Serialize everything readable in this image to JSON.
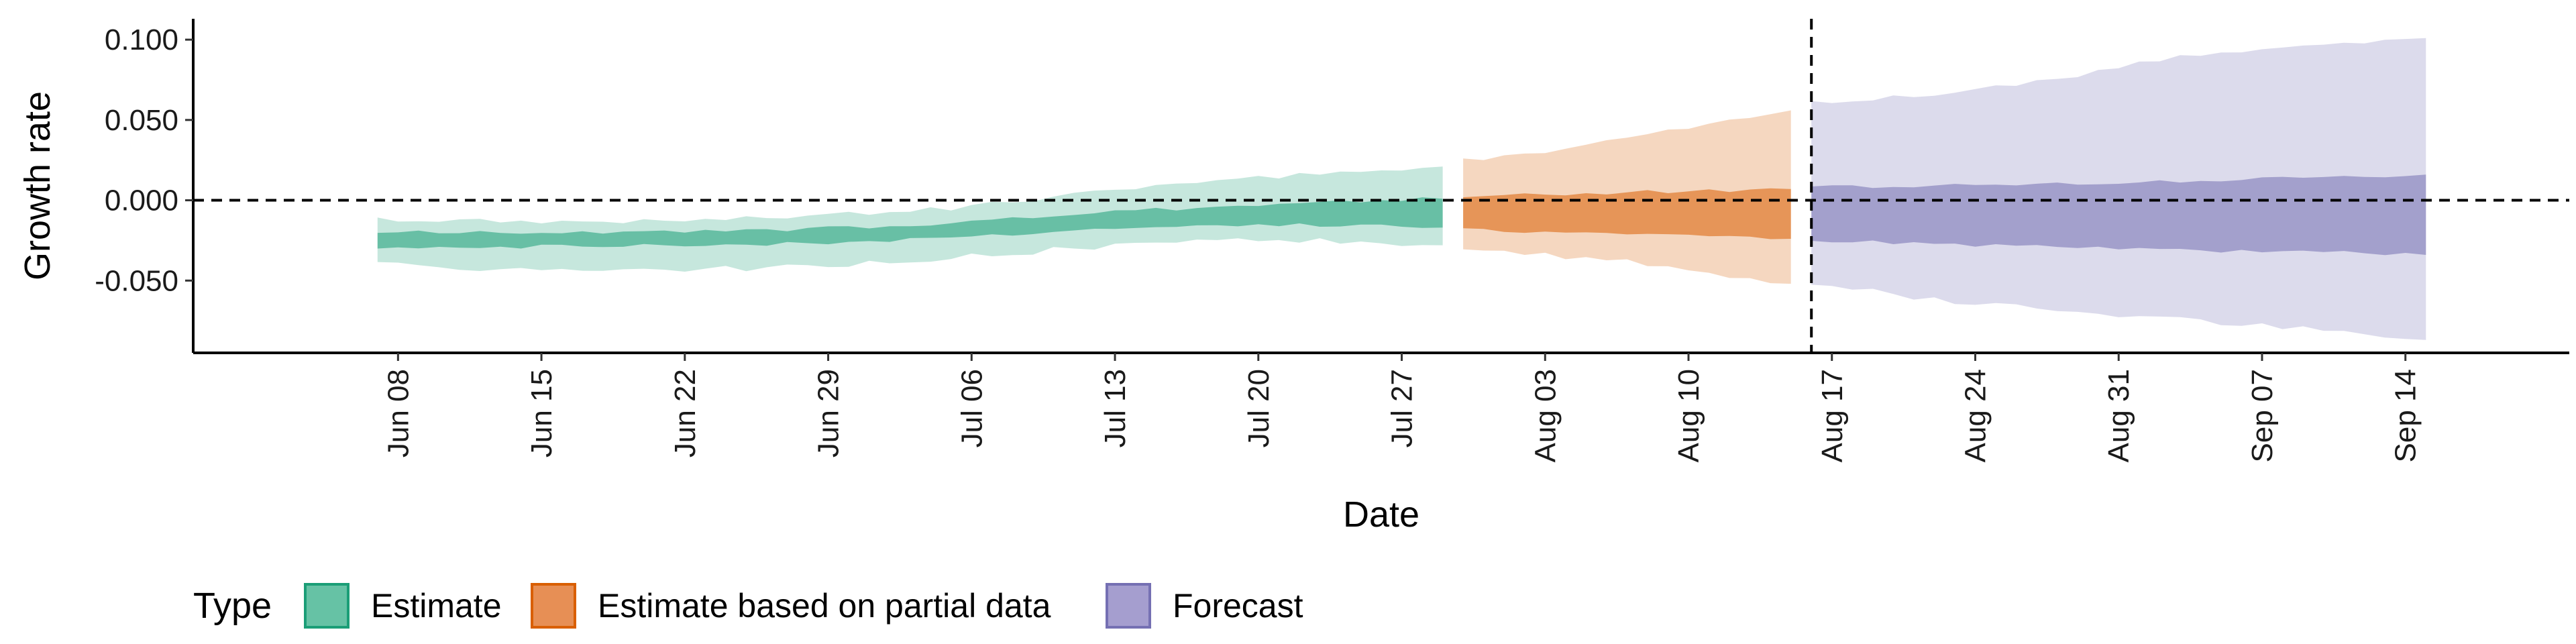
{
  "chart_data": {
    "type": "area",
    "xlabel": "Date",
    "ylabel": "Growth rate",
    "x_axis_type": "date",
    "xlim": [
      "2020-05-29",
      "2020-09-22"
    ],
    "ylim": [
      -0.095,
      0.113
    ],
    "x_ticks": [
      {
        "date": "2020-06-08",
        "label": "Jun 08"
      },
      {
        "date": "2020-06-15",
        "label": "Jun 15"
      },
      {
        "date": "2020-06-22",
        "label": "Jun 22"
      },
      {
        "date": "2020-06-29",
        "label": "Jun 29"
      },
      {
        "date": "2020-07-06",
        "label": "Jul 06"
      },
      {
        "date": "2020-07-13",
        "label": "Jul 13"
      },
      {
        "date": "2020-07-20",
        "label": "Jul 20"
      },
      {
        "date": "2020-07-27",
        "label": "Jul 27"
      },
      {
        "date": "2020-08-03",
        "label": "Aug 03"
      },
      {
        "date": "2020-08-10",
        "label": "Aug 10"
      },
      {
        "date": "2020-08-17",
        "label": "Aug 17"
      },
      {
        "date": "2020-08-24",
        "label": "Aug 24"
      },
      {
        "date": "2020-08-31",
        "label": "Aug 31"
      },
      {
        "date": "2020-09-07",
        "label": "Sep 07"
      },
      {
        "date": "2020-09-14",
        "label": "Sep 14"
      }
    ],
    "y_ticks": [
      {
        "value": -0.05,
        "label": "-0.050"
      },
      {
        "value": 0.0,
        "label": "0.000"
      },
      {
        "value": 0.05,
        "label": "0.050"
      },
      {
        "value": 0.1,
        "label": "0.100"
      }
    ],
    "reference_lines": {
      "horizontal_y": 0.0,
      "vertical_date": "2020-08-16"
    },
    "grid": false,
    "legend": {
      "title": "Type",
      "position": "bottom-left",
      "entries": [
        {
          "label": "Estimate",
          "fill": "#66C2A5",
          "border": "#1B9E77"
        },
        {
          "label": "Estimate based on partial data",
          "fill": "#E78F55",
          "border": "#D95F02"
        },
        {
          "label": "Forecast",
          "fill": "#A59ECF",
          "border": "#7570B3"
        }
      ]
    },
    "series": [
      {
        "name": "Estimate",
        "color": "#1B9E77",
        "points": [
          {
            "date": "2020-06-07",
            "outer": [
              -0.04,
              -0.012
            ],
            "inner": [
              -0.029,
              -0.02
            ]
          },
          {
            "date": "2020-06-14",
            "outer": [
              -0.043,
              -0.013
            ],
            "inner": [
              -0.029,
              -0.02
            ]
          },
          {
            "date": "2020-06-21",
            "outer": [
              -0.044,
              -0.013
            ],
            "inner": [
              -0.028,
              -0.02
            ]
          },
          {
            "date": "2020-06-28",
            "outer": [
              -0.041,
              -0.01
            ],
            "inner": [
              -0.027,
              -0.018
            ]
          },
          {
            "date": "2020-07-05",
            "outer": [
              -0.036,
              -0.005
            ],
            "inner": [
              -0.023,
              -0.014
            ]
          },
          {
            "date": "2020-07-12",
            "outer": [
              -0.029,
              0.005
            ],
            "inner": [
              -0.018,
              -0.008
            ]
          },
          {
            "date": "2020-07-19",
            "outer": [
              -0.025,
              0.013
            ],
            "inner": [
              -0.015,
              -0.003
            ]
          },
          {
            "date": "2020-07-26",
            "outer": [
              -0.026,
              0.019
            ],
            "inner": [
              -0.016,
              0.0
            ]
          },
          {
            "date": "2020-07-29",
            "outer": [
              -0.028,
              0.021
            ],
            "inner": [
              -0.017,
              0.001
            ]
          }
        ]
      },
      {
        "name": "Estimate based on partial data",
        "color": "#D95F02",
        "points": [
          {
            "date": "2020-07-30",
            "outer": [
              -0.029,
              0.025
            ],
            "inner": [
              -0.018,
              0.003
            ]
          },
          {
            "date": "2020-08-03",
            "outer": [
              -0.034,
              0.03
            ],
            "inner": [
              -0.02,
              0.004
            ]
          },
          {
            "date": "2020-08-07",
            "outer": [
              -0.038,
              0.038
            ],
            "inner": [
              -0.02,
              0.005
            ]
          },
          {
            "date": "2020-08-11",
            "outer": [
              -0.045,
              0.048
            ],
            "inner": [
              -0.022,
              0.006
            ]
          },
          {
            "date": "2020-08-15",
            "outer": [
              -0.052,
              0.056
            ],
            "inner": [
              -0.024,
              0.007
            ]
          }
        ]
      },
      {
        "name": "Forecast",
        "color": "#7570B3",
        "points": [
          {
            "date": "2020-08-16",
            "outer": [
              -0.052,
              0.061
            ],
            "inner": [
              -0.025,
              0.008
            ]
          },
          {
            "date": "2020-08-22",
            "outer": [
              -0.062,
              0.066
            ],
            "inner": [
              -0.027,
              0.009
            ]
          },
          {
            "date": "2020-08-28",
            "outer": [
              -0.068,
              0.075
            ],
            "inner": [
              -0.029,
              0.01
            ]
          },
          {
            "date": "2020-09-03",
            "outer": [
              -0.074,
              0.09
            ],
            "inner": [
              -0.031,
              0.012
            ]
          },
          {
            "date": "2020-09-09",
            "outer": [
              -0.08,
              0.097
            ],
            "inner": [
              -0.032,
              0.014
            ]
          },
          {
            "date": "2020-09-15",
            "outer": [
              -0.087,
              0.101
            ],
            "inner": [
              -0.034,
              0.016
            ]
          }
        ]
      }
    ]
  }
}
